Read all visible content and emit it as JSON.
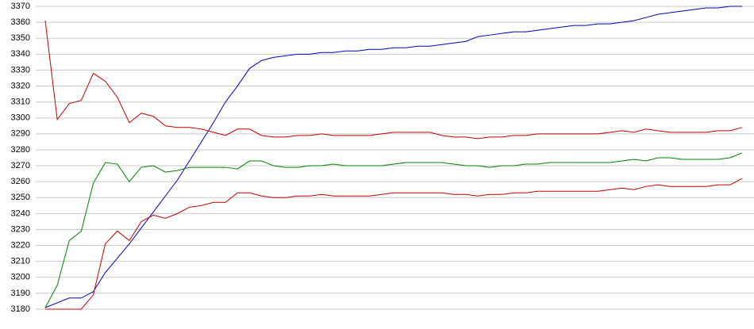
{
  "chart_data": {
    "type": "line",
    "ylim": [
      3180,
      3370
    ],
    "yticks": [
      3180,
      3190,
      3200,
      3210,
      3220,
      3230,
      3240,
      3250,
      3260,
      3270,
      3280,
      3290,
      3300,
      3310,
      3320,
      3330,
      3340,
      3350,
      3360,
      3370
    ],
    "grid": true,
    "series": [
      {
        "color": "#0000c0",
        "values": [
          3181,
          3184,
          3187,
          3187,
          3191,
          3203,
          3212,
          3221,
          3231,
          3241,
          3251,
          3261,
          3273,
          3285,
          3297,
          3310,
          3320,
          3331,
          3336,
          3338,
          3339,
          3340,
          3340,
          3341,
          3341,
          3342,
          3342,
          3343,
          3343,
          3344,
          3344,
          3345,
          3345,
          3346,
          3347,
          3348,
          3351,
          3352,
          3353,
          3354,
          3354,
          3355,
          3356,
          3357,
          3358,
          3358,
          3359,
          3359,
          3360,
          3361,
          3363,
          3365,
          3366,
          3367,
          3368,
          3369,
          3369,
          3370,
          3370
        ]
      },
      {
        "color": "#c00000",
        "values": [
          3361,
          3299,
          3309,
          3311,
          3328,
          3323,
          3313,
          3297,
          3303,
          3301,
          3295,
          3294,
          3294,
          3293,
          3291,
          3289,
          3293,
          3293,
          3289,
          3288,
          3288,
          3289,
          3289,
          3290,
          3289,
          3289,
          3289,
          3289,
          3290,
          3291,
          3291,
          3291,
          3291,
          3289,
          3288,
          3288,
          3287,
          3288,
          3288,
          3289,
          3289,
          3290,
          3290,
          3290,
          3290,
          3290,
          3290,
          3291,
          3292,
          3291,
          3293,
          3292,
          3291,
          3291,
          3291,
          3291,
          3292,
          3292,
          3294
        ]
      },
      {
        "color": "#008000",
        "values": [
          3181,
          3195,
          3223,
          3229,
          3259,
          3272,
          3271,
          3260,
          3269,
          3270,
          3266,
          3267,
          3269,
          3269,
          3269,
          3269,
          3268,
          3273,
          3273,
          3270,
          3269,
          3269,
          3270,
          3270,
          3271,
          3270,
          3270,
          3270,
          3270,
          3271,
          3272,
          3272,
          3272,
          3272,
          3271,
          3270,
          3270,
          3269,
          3270,
          3270,
          3271,
          3271,
          3272,
          3272,
          3272,
          3272,
          3272,
          3272,
          3273,
          3274,
          3273,
          3275,
          3275,
          3274,
          3274,
          3274,
          3274,
          3275,
          3278
        ]
      },
      {
        "color": "#c00000",
        "values": [
          3180,
          3180,
          3180,
          3180,
          3189,
          3221,
          3229,
          3223,
          3235,
          3239,
          3237,
          3240,
          3244,
          3245,
          3247,
          3247,
          3253,
          3253,
          3251,
          3250,
          3250,
          3251,
          3251,
          3252,
          3251,
          3251,
          3251,
          3251,
          3252,
          3253,
          3253,
          3253,
          3253,
          3253,
          3252,
          3252,
          3251,
          3252,
          3252,
          3253,
          3253,
          3254,
          3254,
          3254,
          3254,
          3254,
          3254,
          3255,
          3256,
          3255,
          3257,
          3258,
          3257,
          3257,
          3257,
          3257,
          3258,
          3258,
          3262
        ]
      }
    ]
  }
}
